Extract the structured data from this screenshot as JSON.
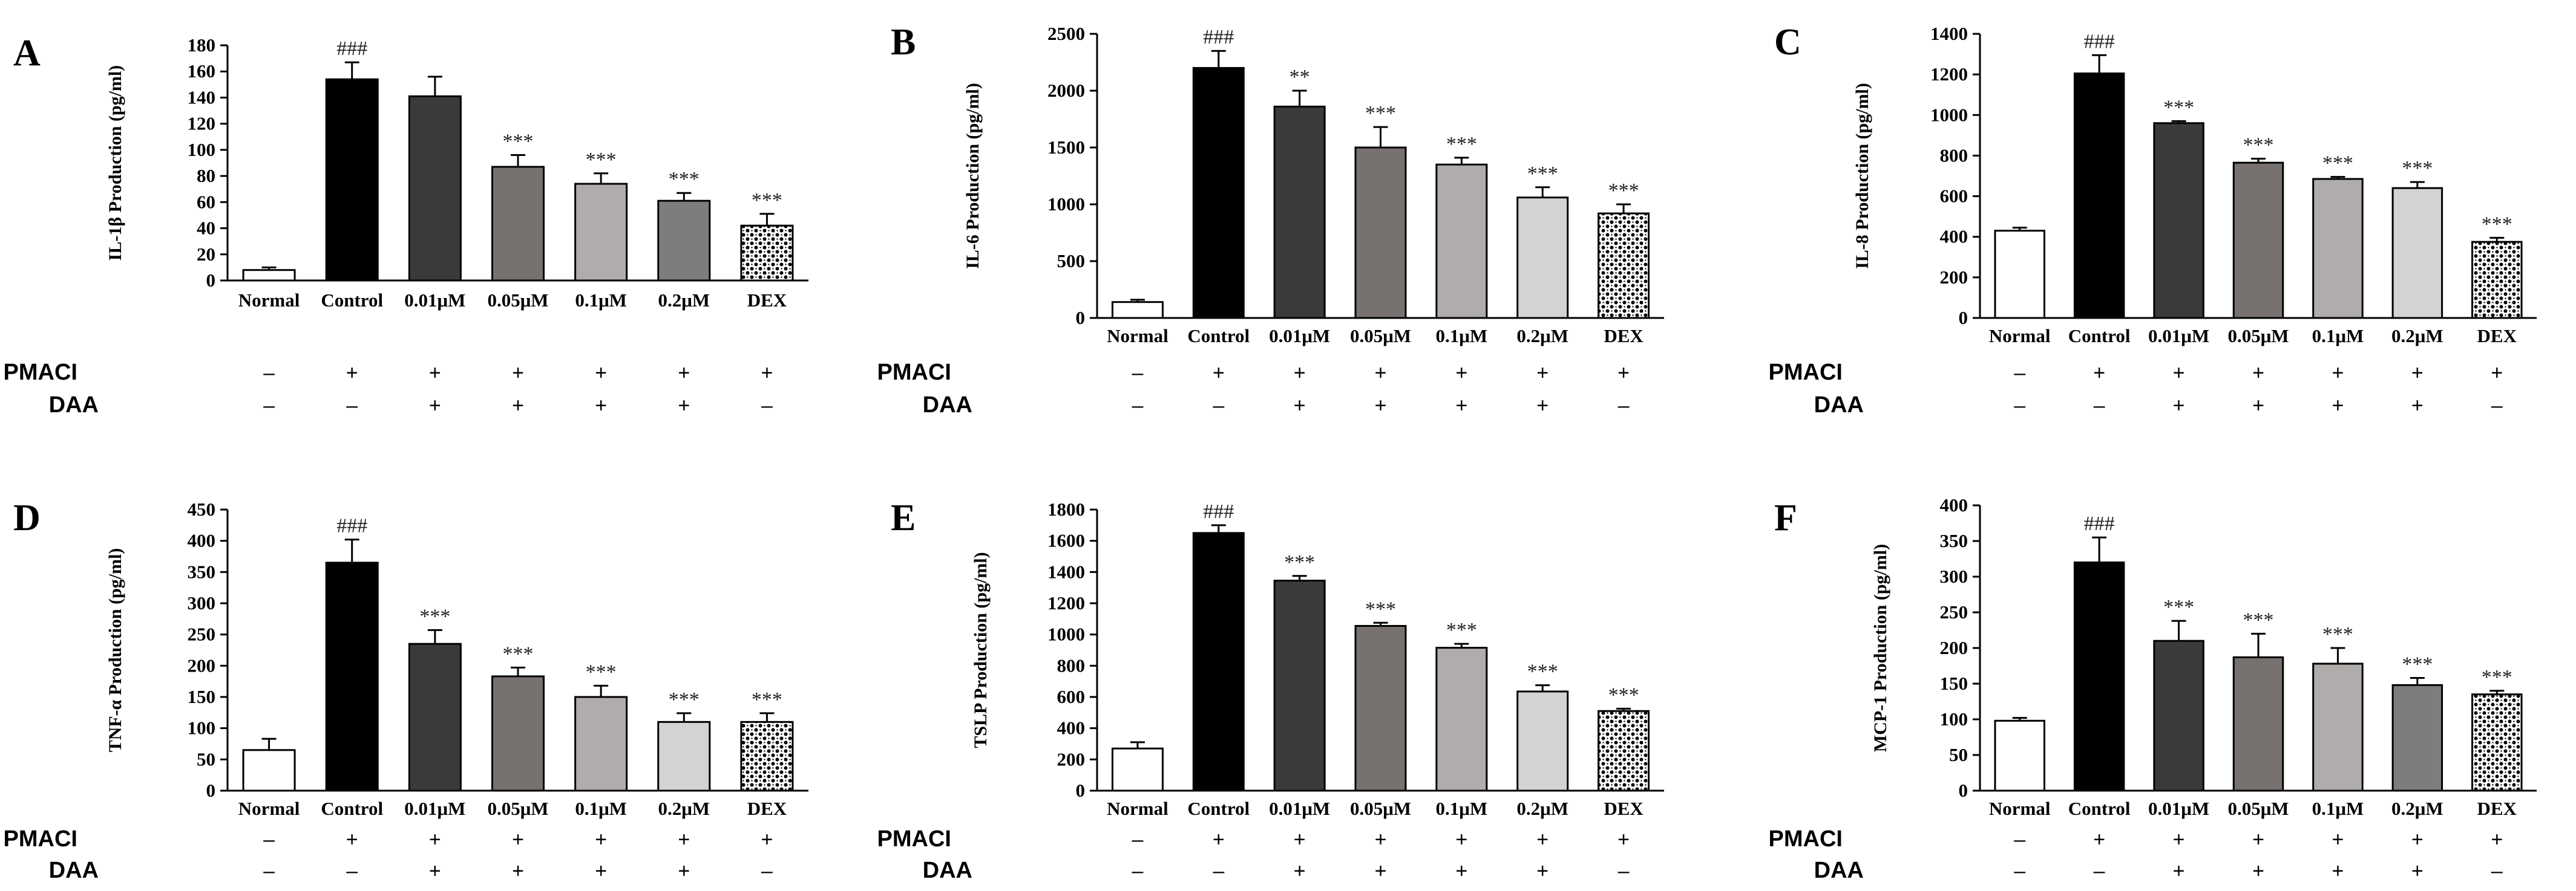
{
  "treatment_rows": [
    {
      "name": "PMACI",
      "values": [
        "–",
        "+",
        "+",
        "+",
        "+",
        "+",
        "+"
      ]
    },
    {
      "name": "DAA",
      "values": [
        "–",
        "–",
        "+",
        "+",
        "+",
        "+",
        "–"
      ]
    }
  ],
  "bar_colors": [
    "#ffffff",
    "#000000",
    "#3a3a3a",
    "#777170",
    "#b0acab",
    "#7d7d7d",
    "pattern"
  ],
  "bar_colors_alt": [
    "#ffffff",
    "#000000",
    "#3a3a3a",
    "#777170",
    "#b0acab",
    "#d3d3d3",
    "pattern"
  ],
  "chart_data": [
    {
      "panel": "A",
      "type": "bar",
      "ylabel": "IL-1β Production (pg/ml)",
      "categories": [
        "Normal",
        "Control",
        "0.01μM",
        "0.05μM",
        "0.1μM",
        "0.2μM",
        "DEX"
      ],
      "values": [
        8,
        154,
        141,
        87,
        74,
        61,
        42
      ],
      "errors": [
        2,
        13,
        15,
        9,
        8,
        6,
        9
      ],
      "significance": [
        "",
        "###",
        "",
        "***",
        "***",
        "***",
        "***"
      ],
      "ylim": [
        0,
        180
      ],
      "yticks": [
        0,
        20,
        40,
        60,
        80,
        100,
        120,
        140,
        160,
        180
      ],
      "palette": "gray"
    },
    {
      "panel": "B",
      "type": "bar",
      "ylabel": "IL-6 Production (pg/ml)",
      "categories": [
        "Normal",
        "Control",
        "0.01μM",
        "0.05μM",
        "0.1μM",
        "0.2μM",
        "DEX"
      ],
      "values": [
        140,
        2200,
        1860,
        1500,
        1350,
        1060,
        920
      ],
      "errors": [
        20,
        150,
        140,
        180,
        60,
        90,
        80
      ],
      "significance": [
        "",
        "###",
        "**",
        "***",
        "***",
        "***",
        "***"
      ],
      "ylim": [
        0,
        2500
      ],
      "yticks": [
        0,
        500,
        1000,
        1500,
        2000,
        2500
      ],
      "palette": "light"
    },
    {
      "panel": "C",
      "type": "bar",
      "ylabel": "IL-8 Production (pg/ml)",
      "categories": [
        "Normal",
        "Control",
        "0.01μM",
        "0.05μM",
        "0.1μM",
        "0.2μM",
        "DEX"
      ],
      "values": [
        430,
        1205,
        960,
        765,
        685,
        640,
        375
      ],
      "errors": [
        15,
        90,
        10,
        20,
        10,
        30,
        20
      ],
      "significance": [
        "",
        "###",
        "***",
        "***",
        "***",
        "***",
        "***"
      ],
      "ylim": [
        0,
        1400
      ],
      "yticks": [
        0,
        200,
        400,
        600,
        800,
        1000,
        1200,
        1400
      ],
      "palette": "light"
    },
    {
      "panel": "D",
      "type": "bar",
      "ylabel": "TNF-α Production (pg/ml)",
      "categories": [
        "Normal",
        "Control",
        "0.01μM",
        "0.05μM",
        "0.1μM",
        "0.2μM",
        "DEX"
      ],
      "values": [
        65,
        365,
        235,
        183,
        150,
        110,
        110
      ],
      "errors": [
        18,
        37,
        22,
        14,
        18,
        14,
        14
      ],
      "significance": [
        "",
        "###",
        "***",
        "***",
        "***",
        "***",
        "***"
      ],
      "ylim": [
        0,
        450
      ],
      "yticks": [
        0,
        50,
        100,
        150,
        200,
        250,
        300,
        350,
        400,
        450
      ],
      "palette": "light"
    },
    {
      "panel": "E",
      "type": "bar",
      "ylabel": "TSLP Production (pg/ml)",
      "categories": [
        "Normal",
        "Control",
        "0.01μM",
        "0.05μM",
        "0.1μM",
        "0.2μM",
        "DEX"
      ],
      "values": [
        270,
        1650,
        1345,
        1055,
        915,
        635,
        510
      ],
      "errors": [
        40,
        50,
        30,
        20,
        25,
        40,
        15
      ],
      "significance": [
        "",
        "###",
        "***",
        "***",
        "***",
        "***",
        "***"
      ],
      "ylim": [
        0,
        1800
      ],
      "yticks": [
        0,
        200,
        400,
        600,
        800,
        1000,
        1200,
        1400,
        1600,
        1800
      ],
      "palette": "light"
    },
    {
      "panel": "F",
      "type": "bar",
      "ylabel": "MCP-1 Production (pg/ml)",
      "categories": [
        "Normal",
        "Control",
        "0.01μM",
        "0.05μM",
        "0.1μM",
        "0.2μM",
        "DEX"
      ],
      "values": [
        98,
        320,
        210,
        187,
        178,
        148,
        135
      ],
      "errors": [
        4,
        35,
        28,
        33,
        22,
        10,
        5
      ],
      "significance": [
        "",
        "###",
        "***",
        "***",
        "***",
        "***",
        "***"
      ],
      "ylim": [
        0,
        400
      ],
      "yticks": [
        0,
        50,
        100,
        150,
        200,
        250,
        300,
        350,
        400
      ],
      "palette": "gray"
    }
  ]
}
